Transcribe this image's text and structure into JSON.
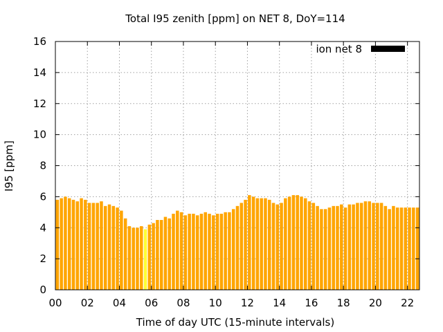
{
  "chart_data": {
    "type": "bar",
    "title": "Total I95 zenith [ppm] on NET 8, DoY=114",
    "xlabel": "Time of day UTC (15-minute intervals)",
    "ylabel": "I95 [ppm]",
    "ylim": [
      0,
      16
    ],
    "yticks": [
      0,
      2,
      4,
      6,
      8,
      10,
      12,
      14,
      16
    ],
    "xlim": [
      0,
      22.75
    ],
    "xticks": [
      {
        "value": 0,
        "label": "00"
      },
      {
        "value": 2,
        "label": "02"
      },
      {
        "value": 4,
        "label": "04"
      },
      {
        "value": 6,
        "label": "06"
      },
      {
        "value": 8,
        "label": "08"
      },
      {
        "value": 10,
        "label": "10"
      },
      {
        "value": 12,
        "label": "12"
      },
      {
        "value": 14,
        "label": "14"
      },
      {
        "value": 16,
        "label": "16"
      },
      {
        "value": 18,
        "label": "18"
      },
      {
        "value": 20,
        "label": "20"
      },
      {
        "value": 22,
        "label": "22"
      }
    ],
    "grid": true,
    "legend": {
      "position": "top-right",
      "label": "ion net 8",
      "color": "#000000"
    },
    "bar_color": "#ffa500",
    "highlight_color": "#ffff33",
    "highlight_index": 22,
    "interval_hours": 0.25,
    "values": [
      5.8,
      5.9,
      6.0,
      5.9,
      5.8,
      5.7,
      5.9,
      5.8,
      5.6,
      5.6,
      5.6,
      5.7,
      5.4,
      5.5,
      5.4,
      5.3,
      5.1,
      4.6,
      4.1,
      4.0,
      4.0,
      4.1,
      3.9,
      4.2,
      4.3,
      4.5,
      4.5,
      4.7,
      4.6,
      4.9,
      5.1,
      5.0,
      4.8,
      4.9,
      4.9,
      4.8,
      4.9,
      5.0,
      4.9,
      4.8,
      4.9,
      4.9,
      5.0,
      5.0,
      5.2,
      5.4,
      5.6,
      5.8,
      6.1,
      6.0,
      5.9,
      5.9,
      5.9,
      5.8,
      5.6,
      5.5,
      5.6,
      5.9,
      6.0,
      6.1,
      6.1,
      6.0,
      5.9,
      5.7,
      5.6,
      5.4,
      5.2,
      5.2,
      5.3,
      5.4,
      5.4,
      5.5,
      5.3,
      5.5,
      5.5,
      5.6,
      5.6,
      5.7,
      5.7,
      5.6,
      5.6,
      5.6,
      5.4,
      5.2,
      5.4,
      5.3,
      5.3,
      5.3,
      5.3,
      5.3,
      5.3
    ]
  }
}
